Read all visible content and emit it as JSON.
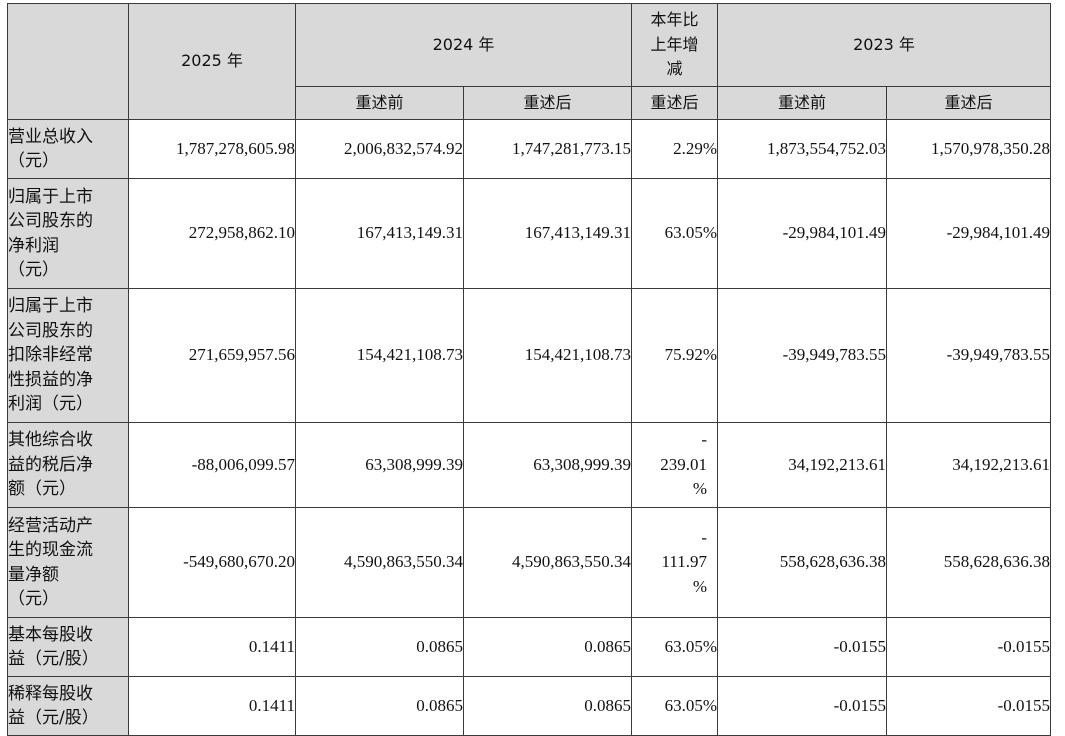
{
  "header": {
    "year_2025": "2025 年",
    "year_2024": "2024 年",
    "change": [
      "本年比",
      "上年增",
      "减"
    ],
    "year_2023": "2023 年",
    "before": "重述前",
    "after": "重述后"
  },
  "rows": [
    {
      "label": [
        "营业总收入",
        "（元）"
      ],
      "v2025": "1,787,278,605.98",
      "v2024_before": "2,006,832,574.92",
      "v2024_after": "1,747,281,773.15",
      "change": [
        "2.29%"
      ],
      "v2023_before": "1,873,554,752.03",
      "v2023_after": "1,570,978,350.28"
    },
    {
      "label": [
        "归属于上市",
        "公司股东的",
        "净利润",
        "（元）"
      ],
      "v2025": "272,958,862.10",
      "v2024_before": "167,413,149.31",
      "v2024_after": "167,413,149.31",
      "change": [
        "63.05%"
      ],
      "v2023_before": "-29,984,101.49",
      "v2023_after": "-29,984,101.49"
    },
    {
      "label": [
        "归属于上市",
        "公司股东的",
        "扣除非经常",
        "性损益的净",
        "利润（元）"
      ],
      "v2025": "271,659,957.56",
      "v2024_before": "154,421,108.73",
      "v2024_after": "154,421,108.73",
      "change": [
        "75.92%"
      ],
      "v2023_before": "-39,949,783.55",
      "v2023_after": "-39,949,783.55"
    },
    {
      "label": [
        "其他综合收",
        "益的税后净",
        "额（元）"
      ],
      "v2025": "-88,006,099.57",
      "v2024_before": "63,308,999.39",
      "v2024_after": "63,308,999.39",
      "change": [
        "-",
        "239.01",
        "%"
      ],
      "v2023_before": "34,192,213.61",
      "v2023_after": "34,192,213.61"
    },
    {
      "label": [
        "经营活动产",
        "生的现金流",
        "量净额",
        "（元）"
      ],
      "v2025": "-549,680,670.20",
      "v2024_before": "4,590,863,550.34",
      "v2024_after": "4,590,863,550.34",
      "change": [
        "-",
        "111.97",
        "%"
      ],
      "v2023_before": "558,628,636.38",
      "v2023_after": "558,628,636.38"
    },
    {
      "label": [
        "基本每股收",
        "益（元/股）"
      ],
      "v2025": "0.1411",
      "v2024_before": "0.0865",
      "v2024_after": "0.0865",
      "change": [
        "63.05%"
      ],
      "v2023_before": "-0.0155",
      "v2023_after": "-0.0155"
    },
    {
      "label": [
        "稀释每股收",
        "益（元/股）"
      ],
      "v2025": "0.1411",
      "v2024_before": "0.0865",
      "v2024_after": "0.0865",
      "change": [
        "63.05%"
      ],
      "v2023_before": "-0.0155",
      "v2023_after": "-0.0155"
    }
  ]
}
